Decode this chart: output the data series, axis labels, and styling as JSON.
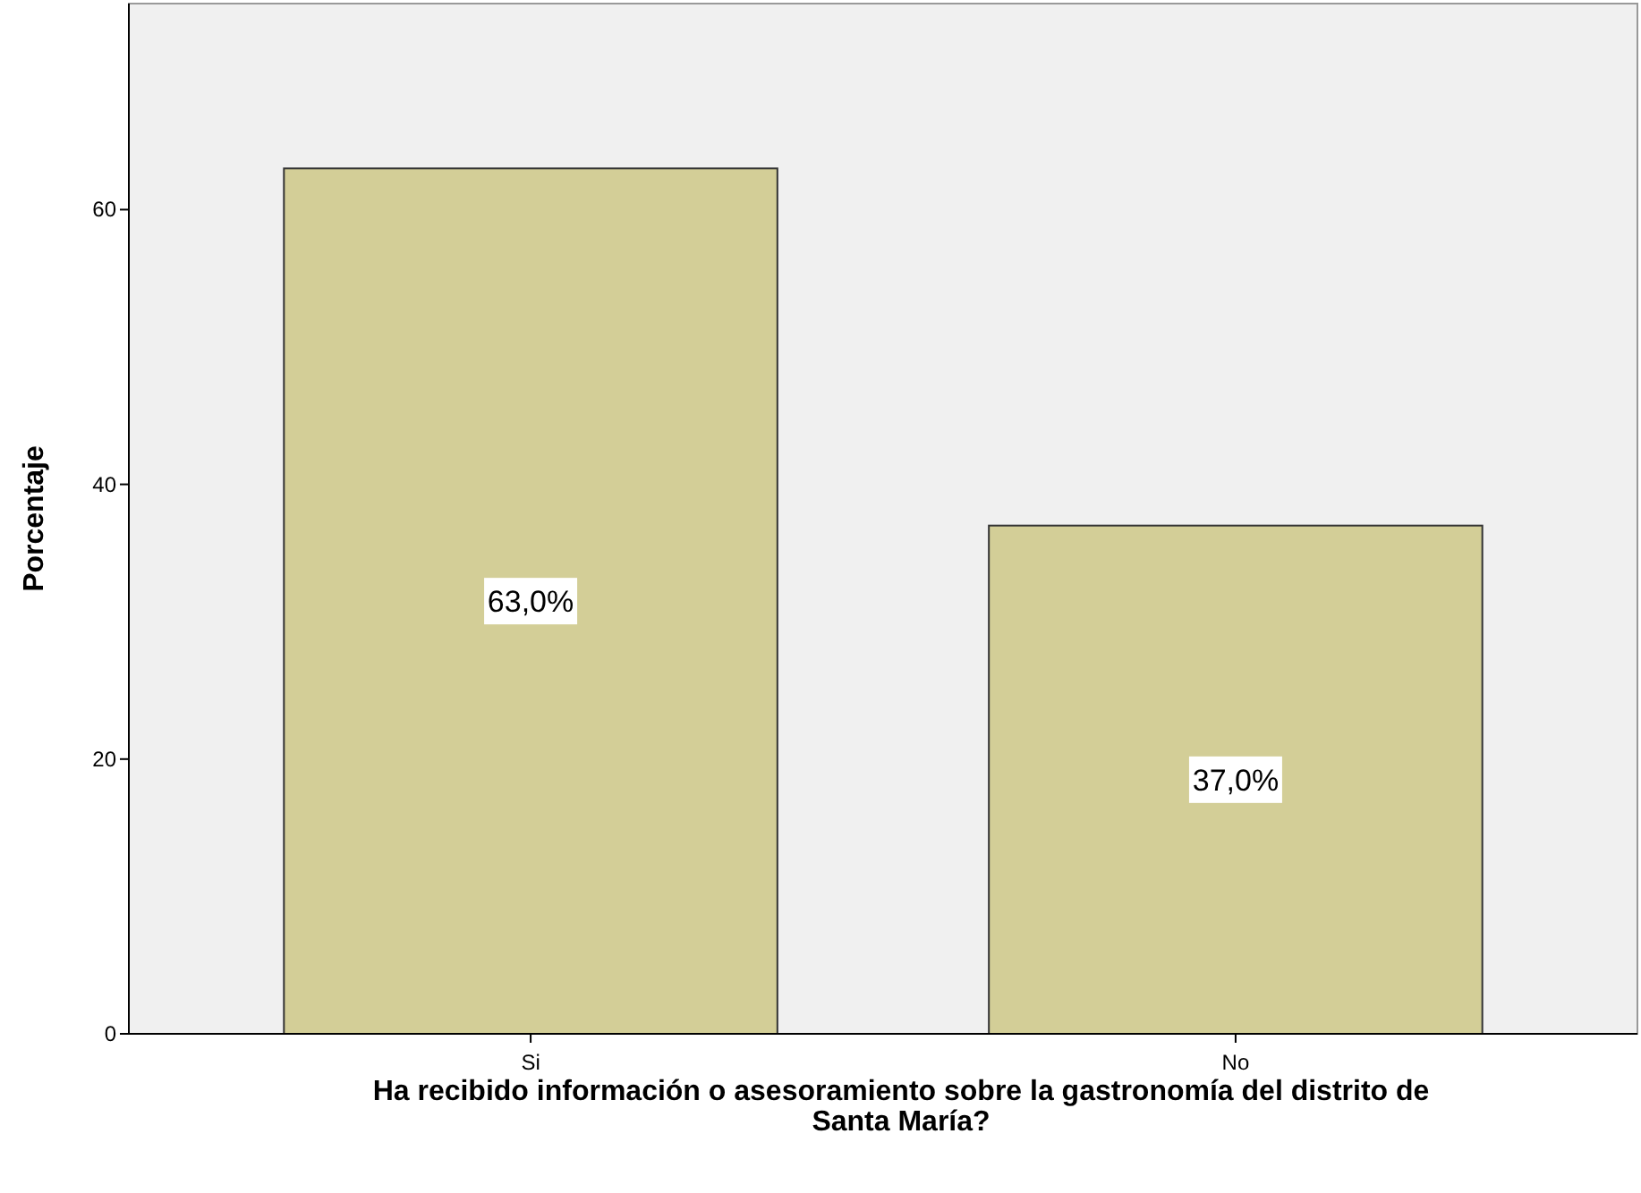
{
  "chart_data": {
    "type": "bar",
    "xlabel": "Ha recibido información o asesoramiento sobre la gastronomía del distrito de Santa María?",
    "ylabel": "Porcentaje",
    "categories": [
      "Si",
      "No"
    ],
    "values": [
      63,
      37
    ],
    "value_labels": [
      "63,0%",
      "37,0%"
    ],
    "color": "#d3ce97",
    "ylim": [
      0,
      75
    ],
    "yticks": [
      0,
      20,
      40,
      60
    ]
  }
}
